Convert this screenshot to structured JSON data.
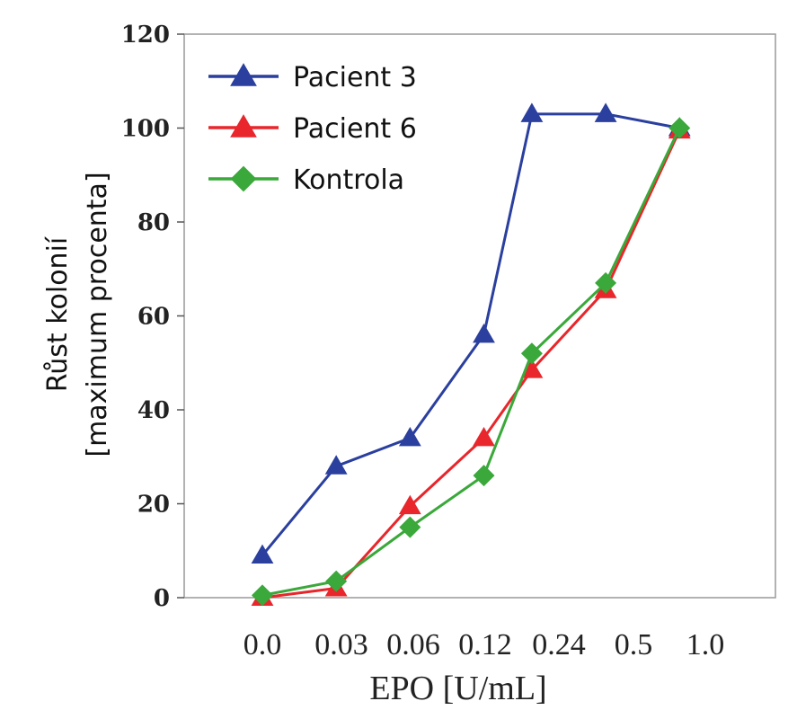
{
  "chart_data": {
    "type": "line",
    "categories": [
      "0.0",
      "0.03",
      "0.06",
      "0.12",
      "0.24",
      "0.5",
      "1.0"
    ],
    "xlabel": "EPO [U/mL]",
    "ylabel_line1": "Růst kolonií",
    "ylabel_line2": "[maximum procenta]",
    "ylim": [
      0,
      120
    ],
    "yticks": [
      "0",
      "20",
      "40",
      "60",
      "80",
      "100",
      "120"
    ],
    "legend_position": "top-left",
    "series": [
      {
        "name": "Pacient 3",
        "color": "#2a3f9e",
        "marker": "triangle",
        "points": [
          {
            "x": 0.0,
            "y": 9
          },
          {
            "x": 1.0,
            "y": 28
          },
          {
            "x": 2.0,
            "y": 34
          },
          {
            "x": 3.0,
            "y": 56
          },
          {
            "x": 3.65,
            "y": 103
          },
          {
            "x": 4.65,
            "y": 103
          },
          {
            "x": 5.65,
            "y": 100
          }
        ]
      },
      {
        "name": "Pacient 6",
        "color": "#e8262b",
        "marker": "triangle",
        "points": [
          {
            "x": 0.0,
            "y": 0
          },
          {
            "x": 1.0,
            "y": 2
          },
          {
            "x": 2.0,
            "y": 19.5
          },
          {
            "x": 3.0,
            "y": 34
          },
          {
            "x": 3.65,
            "y": 48.5
          },
          {
            "x": 4.65,
            "y": 65.5
          },
          {
            "x": 5.65,
            "y": 99.5
          }
        ]
      },
      {
        "name": "Kontrola",
        "color": "#3aa83a",
        "marker": "diamond",
        "points": [
          {
            "x": 0.0,
            "y": 0.5
          },
          {
            "x": 1.0,
            "y": 3.5
          },
          {
            "x": 2.0,
            "y": 15
          },
          {
            "x": 3.0,
            "y": 26
          },
          {
            "x": 3.65,
            "y": 52
          },
          {
            "x": 4.65,
            "y": 67
          },
          {
            "x": 5.65,
            "y": 100
          }
        ]
      }
    ]
  }
}
